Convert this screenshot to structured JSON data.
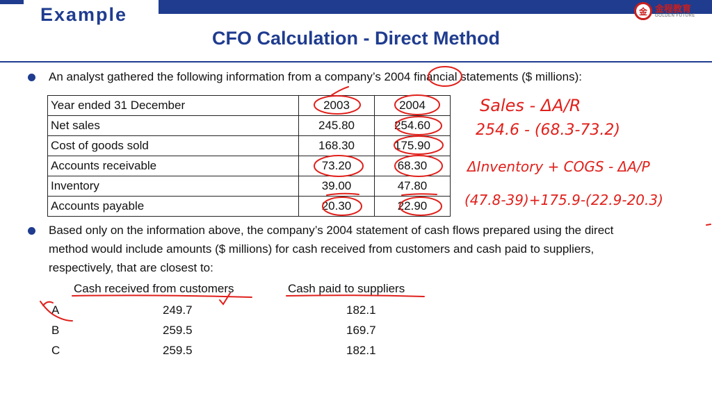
{
  "header": {
    "tab_label": "Example",
    "title": "CFO Calculation - Direct Method",
    "logo": {
      "chinese": "金程教育",
      "english": "GOLDEN FUTURE"
    },
    "brand_color": "#1f3c8f",
    "logo_color": "#c81e1e"
  },
  "intro": "An analyst gathered the following information from a company’s 2004 financial statements ($ millions):",
  "table": {
    "header": [
      "Year ended 31 December",
      "2003",
      "2004"
    ],
    "rows": [
      [
        "Net sales",
        "245.80",
        "254.60"
      ],
      [
        "Cost of goods sold",
        "168.30",
        "175.90"
      ],
      [
        "Accounts receivable",
        "73.20",
        "68.30"
      ],
      [
        "Inventory",
        "39.00",
        "47.80"
      ],
      [
        "Accounts payable",
        "20.30",
        "22.90"
      ]
    ]
  },
  "question_lines": [
    "Based only on the information above, the company’s 2004 statement of cash flows prepared using the direct",
    "method would include amounts ($ millions) for cash received from customers and cash paid to suppliers,",
    "respectively, that are closest to:"
  ],
  "answers": {
    "col1": "Cash received from customers",
    "col2": "Cash paid to suppliers",
    "options": [
      {
        "letter": "A",
        "v1": "249.7",
        "v2": "182.1"
      },
      {
        "letter": "B",
        "v1": "259.5",
        "v2": "169.7"
      },
      {
        "letter": "C",
        "v1": "259.5",
        "v2": "182.1"
      }
    ]
  },
  "annotations": {
    "line1": "Sales - ΔA/R",
    "line2": "254.6 - (68.3-73.2)",
    "line3": "ΔInventory + COGS - ΔA/P",
    "line4": "(47.8-39)+175.9-(22.9-20.3)",
    "ink_color": "#e0201b"
  }
}
